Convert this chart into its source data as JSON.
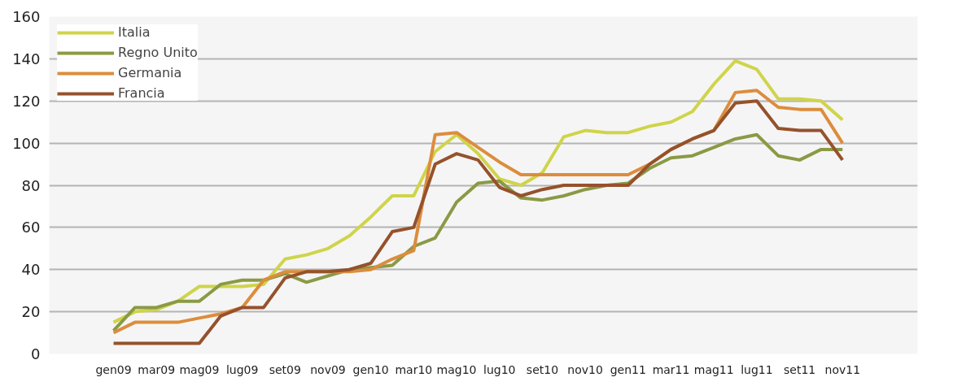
{
  "chart_data": {
    "type": "line",
    "categories": [
      "gen09",
      null,
      "mar09",
      null,
      "mag09",
      null,
      "lug09",
      null,
      "set09",
      null,
      "nov09",
      null,
      "gen10",
      null,
      "mar10",
      null,
      "mag10",
      null,
      "lug10",
      null,
      "set10",
      null,
      "nov10",
      null,
      "gen11",
      null,
      "mar11",
      null,
      "mag11",
      null,
      "lug11",
      null,
      "set11",
      null,
      "nov11"
    ],
    "series": [
      {
        "name": "Italia",
        "color": "#cfd44a",
        "values": [
          15,
          20,
          21,
          25,
          32,
          32,
          32,
          33,
          45,
          47,
          50,
          56,
          65,
          75,
          75,
          96,
          104,
          95,
          83,
          80,
          86,
          103,
          106,
          105,
          105,
          108,
          110,
          115,
          128,
          139,
          135,
          121,
          121,
          120,
          111
        ]
      },
      {
        "name": "Regno Unito",
        "color": "#8a9a45",
        "values": [
          11,
          22,
          22,
          25,
          25,
          33,
          35,
          35,
          38,
          34,
          37,
          40,
          41,
          42,
          51,
          55,
          72,
          81,
          82,
          74,
          73,
          75,
          78,
          80,
          81,
          88,
          93,
          94,
          98,
          102,
          104,
          94,
          92,
          97,
          97
        ]
      },
      {
        "name": "Germania",
        "color": "#dc8d3c",
        "values": [
          10,
          15,
          15,
          15,
          17,
          19,
          22,
          35,
          39,
          39,
          39,
          39,
          40,
          45,
          49,
          104,
          105,
          98,
          91,
          85,
          85,
          85,
          85,
          85,
          85,
          90,
          97,
          102,
          106,
          124,
          125,
          117,
          116,
          116,
          100
        ]
      },
      {
        "name": "Francia",
        "color": "#95522c",
        "values": [
          5,
          5,
          5,
          5,
          5,
          18,
          22,
          22,
          36,
          39,
          39,
          40,
          43,
          58,
          60,
          90,
          95,
          92,
          79,
          75,
          78,
          80,
          80,
          80,
          80,
          90,
          97,
          102,
          106,
          119,
          120,
          107,
          106,
          106,
          92
        ]
      }
    ],
    "ylim": [
      0,
      160
    ],
    "yticks": [
      0,
      20,
      40,
      60,
      80,
      100,
      120,
      140,
      160
    ],
    "grid": "y",
    "legend": "top left",
    "line_style": "solid"
  }
}
